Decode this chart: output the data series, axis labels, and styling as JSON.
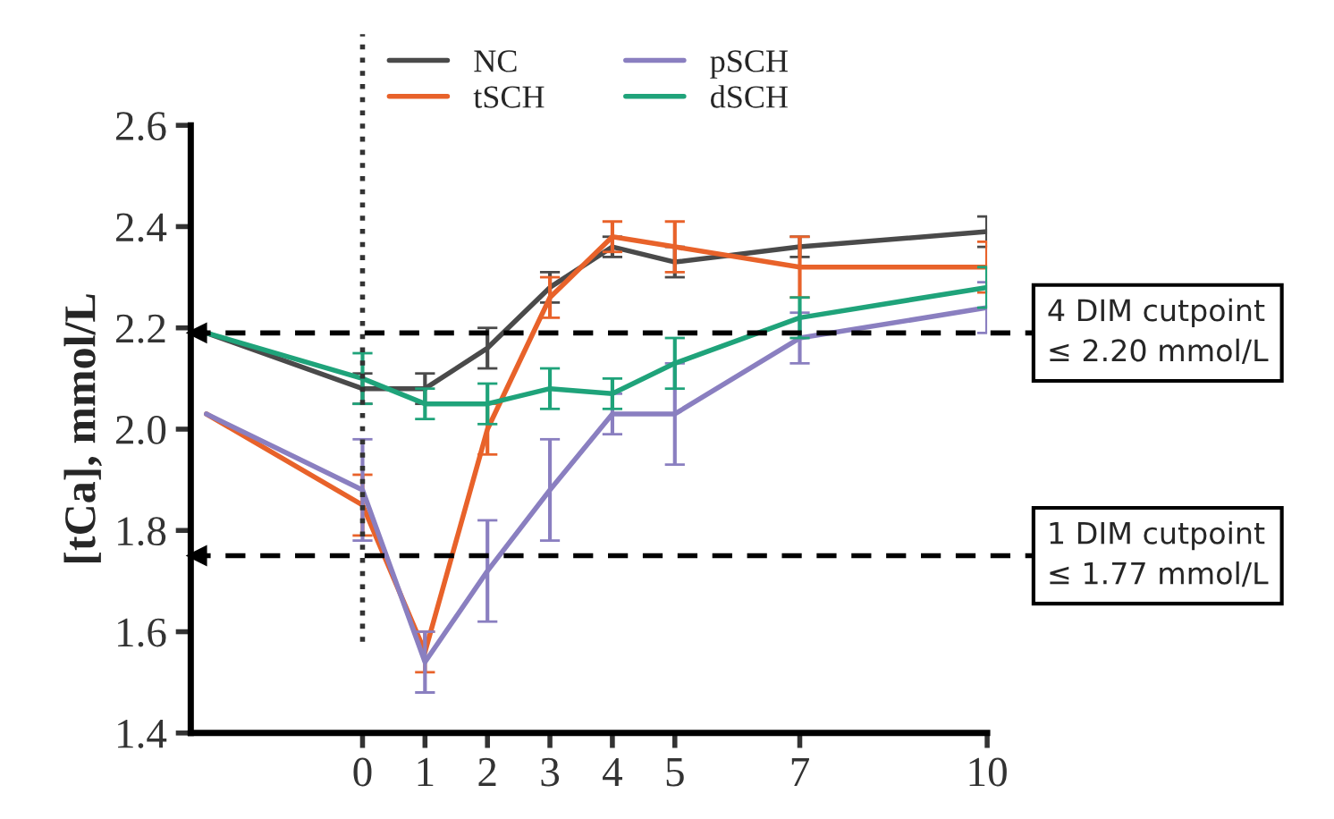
{
  "chart_data": {
    "type": "line",
    "ylabel": "[tCa], mmol/L",
    "x": [
      -2.5,
      0,
      1,
      2,
      3,
      4,
      5,
      7,
      10
    ],
    "series": [
      {
        "name": "NC",
        "color": "#4a4a4a",
        "values": [
          2.19,
          2.08,
          2.08,
          2.16,
          2.28,
          2.36,
          2.33,
          2.36,
          2.39
        ],
        "errors": [
          null,
          0.03,
          0.03,
          0.04,
          0.03,
          0.02,
          0.03,
          0.02,
          0.03
        ]
      },
      {
        "name": "tSCH",
        "color": "#e8622a",
        "values": [
          2.03,
          1.85,
          1.56,
          2.0,
          2.26,
          2.38,
          2.36,
          2.32,
          2.32
        ],
        "errors": [
          null,
          0.06,
          0.04,
          0.05,
          0.04,
          0.03,
          0.05,
          0.06,
          0.05
        ]
      },
      {
        "name": "pSCH",
        "color": "#8a7fc0",
        "values": [
          2.03,
          1.88,
          1.54,
          1.72,
          1.88,
          2.03,
          2.03,
          2.18,
          2.24
        ],
        "errors": [
          null,
          0.1,
          0.06,
          0.1,
          0.1,
          0.04,
          0.1,
          0.05,
          0.05
        ]
      },
      {
        "name": "dSCH",
        "color": "#1fa37a",
        "values": [
          2.19,
          2.1,
          2.05,
          2.05,
          2.08,
          2.07,
          2.13,
          2.22,
          2.28
        ],
        "errors": [
          null,
          0.05,
          0.03,
          0.04,
          0.04,
          0.03,
          0.05,
          0.04,
          0.04
        ]
      }
    ],
    "xlim": [
      -2.75,
      10
    ],
    "xticks": [
      0,
      1,
      2,
      3,
      4,
      5,
      7,
      10
    ],
    "ylim": [
      1.4,
      2.6
    ],
    "yticks": [
      1.4,
      1.6,
      1.8,
      {
        "value": 2.0,
        "label": "2.0"
      },
      2.2,
      2.4,
      2.6
    ],
    "ref_lines": [
      {
        "axis": "x",
        "value": 0,
        "line_style": "dotted",
        "color": "#333333"
      },
      {
        "axis": "y",
        "value": 2.19,
        "line_style": "dashed",
        "color": "#000000",
        "label": "4 DIM cutpoint\n≤ 2.20 mmol/L"
      },
      {
        "axis": "y",
        "value": 1.75,
        "line_style": "dashed",
        "color": "#000000",
        "label": "1 DIM cutpoint\n≤ 1.77 mmol/L"
      }
    ],
    "grid": false,
    "legend": "top",
    "marker": "none",
    "line_style": "solid"
  }
}
